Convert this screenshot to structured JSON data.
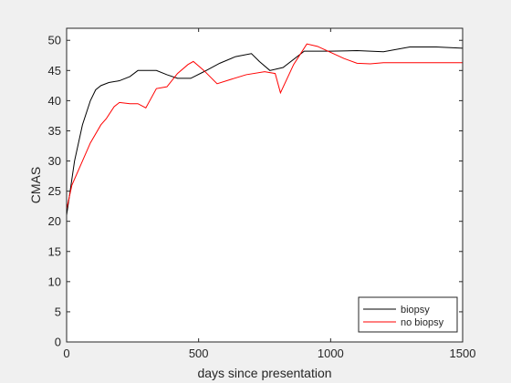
{
  "chart_data": {
    "type": "line",
    "xlabel": "days since presentation",
    "ylabel": "CMAS",
    "xlim": [
      0,
      1500
    ],
    "ylim": [
      0,
      52
    ],
    "xticks": [
      0,
      500,
      1000,
      1500
    ],
    "yticks": [
      0,
      5,
      10,
      15,
      20,
      25,
      30,
      35,
      40,
      45,
      50
    ],
    "grid": false,
    "legend_position": "bottom-right",
    "series": [
      {
        "name": "biopsy",
        "color": "#000000",
        "x": [
          0,
          30,
          60,
          90,
          110,
          130,
          160,
          200,
          240,
          270,
          300,
          340,
          380,
          420,
          470,
          520,
          580,
          640,
          700,
          730,
          770,
          820,
          900,
          1000,
          1100,
          1200,
          1300,
          1400,
          1500
        ],
        "y": [
          21,
          30,
          36,
          40,
          41.8,
          42.5,
          43,
          43.3,
          44,
          45,
          45,
          45,
          44.3,
          43.7,
          43.7,
          44.8,
          46.2,
          47.3,
          47.8,
          46.5,
          45,
          45.5,
          48.2,
          48.2,
          48.3,
          48.1,
          48.9,
          48.9,
          48.7
        ]
      },
      {
        "name": "no biopsy",
        "color": "#ff0000",
        "x": [
          0,
          20,
          50,
          90,
          130,
          150,
          180,
          200,
          240,
          270,
          300,
          340,
          380,
          420,
          460,
          480,
          520,
          570,
          620,
          680,
          750,
          790,
          810,
          860,
          910,
          950,
          1000,
          1050,
          1100,
          1150,
          1200,
          1300,
          1400,
          1500
        ],
        "y": [
          22,
          26,
          29,
          33,
          36,
          37,
          39,
          39.7,
          39.5,
          39.5,
          38.8,
          42,
          42.3,
          44.5,
          46,
          46.5,
          45,
          42.8,
          43.5,
          44.3,
          44.8,
          44.5,
          41.3,
          46,
          49.4,
          49,
          48,
          47,
          46.2,
          46.1,
          46.3,
          46.3,
          46.3,
          46.3
        ]
      }
    ]
  }
}
